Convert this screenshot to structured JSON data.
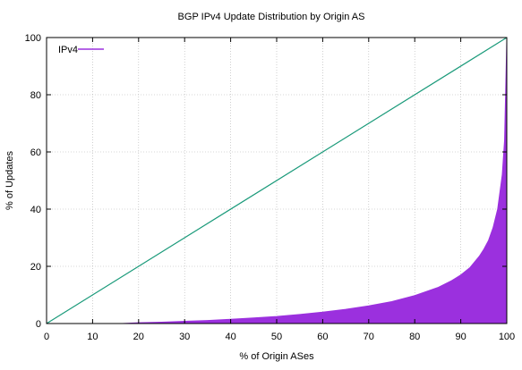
{
  "chart_data": {
    "type": "area",
    "title": "BGP IPv4 Update Distribution by Origin AS",
    "xlabel": "% of Origin ASes",
    "ylabel": "% of Updates",
    "xlim": [
      0,
      100
    ],
    "ylim": [
      0,
      100
    ],
    "x_ticks": [
      0,
      10,
      20,
      30,
      40,
      50,
      60,
      70,
      80,
      90,
      100
    ],
    "y_ticks": [
      0,
      20,
      40,
      60,
      80,
      100
    ],
    "grid": true,
    "legend_position": "top-left",
    "series": [
      {
        "name": "IPv4",
        "kind": "filled-area",
        "color": "#9b30de",
        "x": [
          0,
          10,
          16,
          20,
          25,
          30,
          35,
          40,
          45,
          50,
          55,
          60,
          65,
          70,
          75,
          80,
          85,
          88,
          90,
          92,
          94,
          95,
          96,
          97,
          98,
          99,
          99.5,
          100
        ],
        "y": [
          0,
          0,
          0,
          0.3,
          0.5,
          0.8,
          1.1,
          1.5,
          2.0,
          2.5,
          3.2,
          4.0,
          5.0,
          6.2,
          7.7,
          9.8,
          12.6,
          15.0,
          17.0,
          19.6,
          23.5,
          26.0,
          29.0,
          33.5,
          40.0,
          52.0,
          64.0,
          100
        ]
      },
      {
        "kind": "reference-line",
        "color": "#1a9a7a",
        "x": [
          0,
          100
        ],
        "y": [
          0,
          100
        ]
      }
    ]
  }
}
